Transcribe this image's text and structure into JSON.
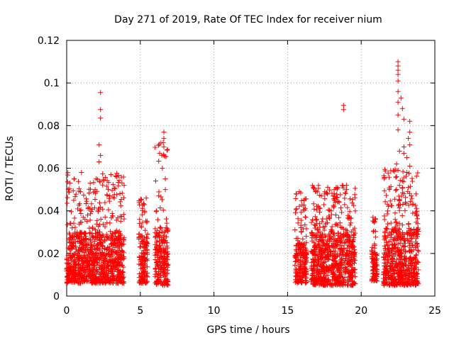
{
  "chart_data": {
    "type": "scatter",
    "title": "Day 271 of 2019, Rate Of TEC Index for receiver nium",
    "xlabel": "GPS time / hours",
    "ylabel": "ROTI / TECUs",
    "xlim": [
      0,
      25
    ],
    "ylim": [
      0,
      0.12
    ],
    "x_ticks": [
      "0",
      "5",
      "10",
      "15",
      "20",
      "25"
    ],
    "y_ticks": [
      "0",
      "0.02",
      "0.04",
      "0.06",
      "0.08",
      "0.1",
      "0.12"
    ],
    "grid": true,
    "marker": "+",
    "color": "#ff0000",
    "segments": [
      {
        "x_range": [
          0.0,
          3.9
        ],
        "typical": [
          0.006,
          0.03
        ],
        "max": 0.058
      },
      {
        "x_range": [
          4.9,
          5.5
        ],
        "typical": [
          0.006,
          0.03
        ],
        "max": 0.046
      },
      {
        "x_range": [
          6.0,
          6.9
        ],
        "typical": [
          0.005,
          0.032
        ],
        "max": 0.077
      },
      {
        "x_range": [
          15.5,
          16.3
        ],
        "typical": [
          0.006,
          0.025
        ],
        "max": 0.049
      },
      {
        "x_range": [
          16.6,
          19.6
        ],
        "typical": [
          0.005,
          0.03
        ],
        "max": 0.052
      },
      {
        "x_range": [
          20.7,
          21.1
        ],
        "typical": [
          0.007,
          0.02
        ],
        "max": 0.037
      },
      {
        "x_range": [
          21.5,
          23.9
        ],
        "typical": [
          0.005,
          0.032
        ],
        "max": 0.06
      }
    ],
    "points": [
      {
        "x": 2.3,
        "y": 0.0955
      },
      {
        "x": 2.3,
        "y": 0.0875
      },
      {
        "x": 2.3,
        "y": 0.0835
      },
      {
        "x": 2.2,
        "y": 0.071
      },
      {
        "x": 2.3,
        "y": 0.066
      },
      {
        "x": 2.2,
        "y": 0.063
      },
      {
        "x": 0.5,
        "y": 0.055
      },
      {
        "x": 1.0,
        "y": 0.058
      },
      {
        "x": 1.6,
        "y": 0.053
      },
      {
        "x": 3.4,
        "y": 0.056
      },
      {
        "x": 3.9,
        "y": 0.052
      },
      {
        "x": 3.0,
        "y": 0.057
      },
      {
        "x": 5.4,
        "y": 0.046
      },
      {
        "x": 6.6,
        "y": 0.077
      },
      {
        "x": 6.6,
        "y": 0.074
      },
      {
        "x": 6.6,
        "y": 0.07
      },
      {
        "x": 6.6,
        "y": 0.066
      },
      {
        "x": 6.5,
        "y": 0.06
      },
      {
        "x": 6.7,
        "y": 0.055
      },
      {
        "x": 6.7,
        "y": 0.05
      },
      {
        "x": 6.1,
        "y": 0.04
      },
      {
        "x": 15.6,
        "y": 0.048
      },
      {
        "x": 15.8,
        "y": 0.049
      },
      {
        "x": 15.6,
        "y": 0.041
      },
      {
        "x": 16.9,
        "y": 0.049
      },
      {
        "x": 17.3,
        "y": 0.047
      },
      {
        "x": 17.7,
        "y": 0.048
      },
      {
        "x": 18.1,
        "y": 0.047
      },
      {
        "x": 18.5,
        "y": 0.044
      },
      {
        "x": 18.8,
        "y": 0.0895
      },
      {
        "x": 18.8,
        "y": 0.0875
      },
      {
        "x": 19.0,
        "y": 0.052
      },
      {
        "x": 19.0,
        "y": 0.05
      },
      {
        "x": 19.6,
        "y": 0.04
      },
      {
        "x": 20.8,
        "y": 0.037
      },
      {
        "x": 22.5,
        "y": 0.11
      },
      {
        "x": 22.5,
        "y": 0.108
      },
      {
        "x": 22.5,
        "y": 0.106
      },
      {
        "x": 22.5,
        "y": 0.104
      },
      {
        "x": 22.5,
        "y": 0.101
      },
      {
        "x": 22.5,
        "y": 0.096
      },
      {
        "x": 22.7,
        "y": 0.093
      },
      {
        "x": 22.5,
        "y": 0.091
      },
      {
        "x": 22.8,
        "y": 0.088
      },
      {
        "x": 22.5,
        "y": 0.085
      },
      {
        "x": 22.9,
        "y": 0.083
      },
      {
        "x": 23.3,
        "y": 0.082
      },
      {
        "x": 22.5,
        "y": 0.078
      },
      {
        "x": 23.3,
        "y": 0.077
      },
      {
        "x": 23.2,
        "y": 0.074
      },
      {
        "x": 23.3,
        "y": 0.071
      },
      {
        "x": 22.9,
        "y": 0.07
      },
      {
        "x": 22.6,
        "y": 0.068
      },
      {
        "x": 22.9,
        "y": 0.067
      },
      {
        "x": 23.1,
        "y": 0.065
      },
      {
        "x": 22.4,
        "y": 0.062
      },
      {
        "x": 23.3,
        "y": 0.061
      },
      {
        "x": 22.5,
        "y": 0.059
      },
      {
        "x": 23.1,
        "y": 0.058
      },
      {
        "x": 22.4,
        "y": 0.056
      },
      {
        "x": 22.8,
        "y": 0.054
      },
      {
        "x": 22.6,
        "y": 0.052
      },
      {
        "x": 22.4,
        "y": 0.05
      },
      {
        "x": 22.9,
        "y": 0.048
      },
      {
        "x": 23.4,
        "y": 0.047
      },
      {
        "x": 22.6,
        "y": 0.045
      },
      {
        "x": 23.0,
        "y": 0.044
      },
      {
        "x": 21.8,
        "y": 0.04
      }
    ]
  }
}
